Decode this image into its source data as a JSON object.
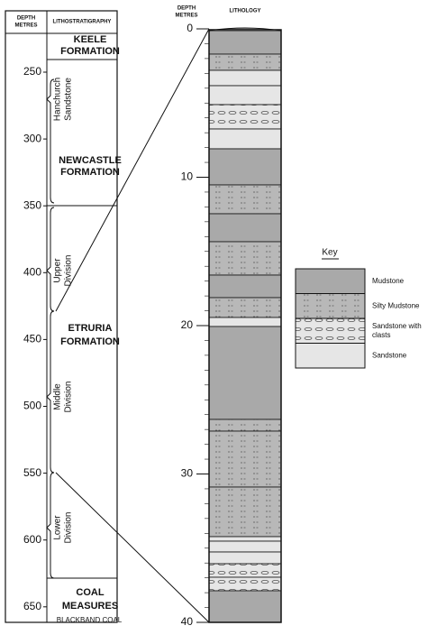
{
  "left": {
    "depth_header": [
      "DEPTH",
      "METRES"
    ],
    "strat_header": "LITHOSTRATIGRAPHY",
    "depth_labels": [
      "250",
      "300",
      "350",
      "400",
      "450",
      "500",
      "550",
      "600",
      "650"
    ],
    "formations": [
      [
        "KEELE",
        "FORMATION"
      ],
      [
        "NEWCASTLE",
        "FORMATION"
      ],
      [
        "ETRURIA",
        "FORMATION"
      ],
      [
        "COAL",
        "MEASURES"
      ]
    ],
    "coal": "BLACKBAND COAL",
    "members": [
      [
        "Hanchurch",
        "Sandstone"
      ],
      [
        "Upper",
        "Division"
      ],
      [
        "Middle",
        "Division"
      ],
      [
        "Lower",
        "Division"
      ]
    ]
  },
  "right": {
    "depth_header": [
      "DEPTH",
      "METRES"
    ],
    "lithology_header": "LITHOLOGY",
    "depth_labels": [
      "0",
      "10",
      "20",
      "30",
      "40"
    ]
  },
  "key": {
    "title": "Key",
    "items": [
      [
        "Mudstone"
      ],
      [
        "Silty Mudstone"
      ],
      [
        "Sandstone with",
        "clasts"
      ],
      [
        "Sandstone"
      ]
    ]
  }
}
